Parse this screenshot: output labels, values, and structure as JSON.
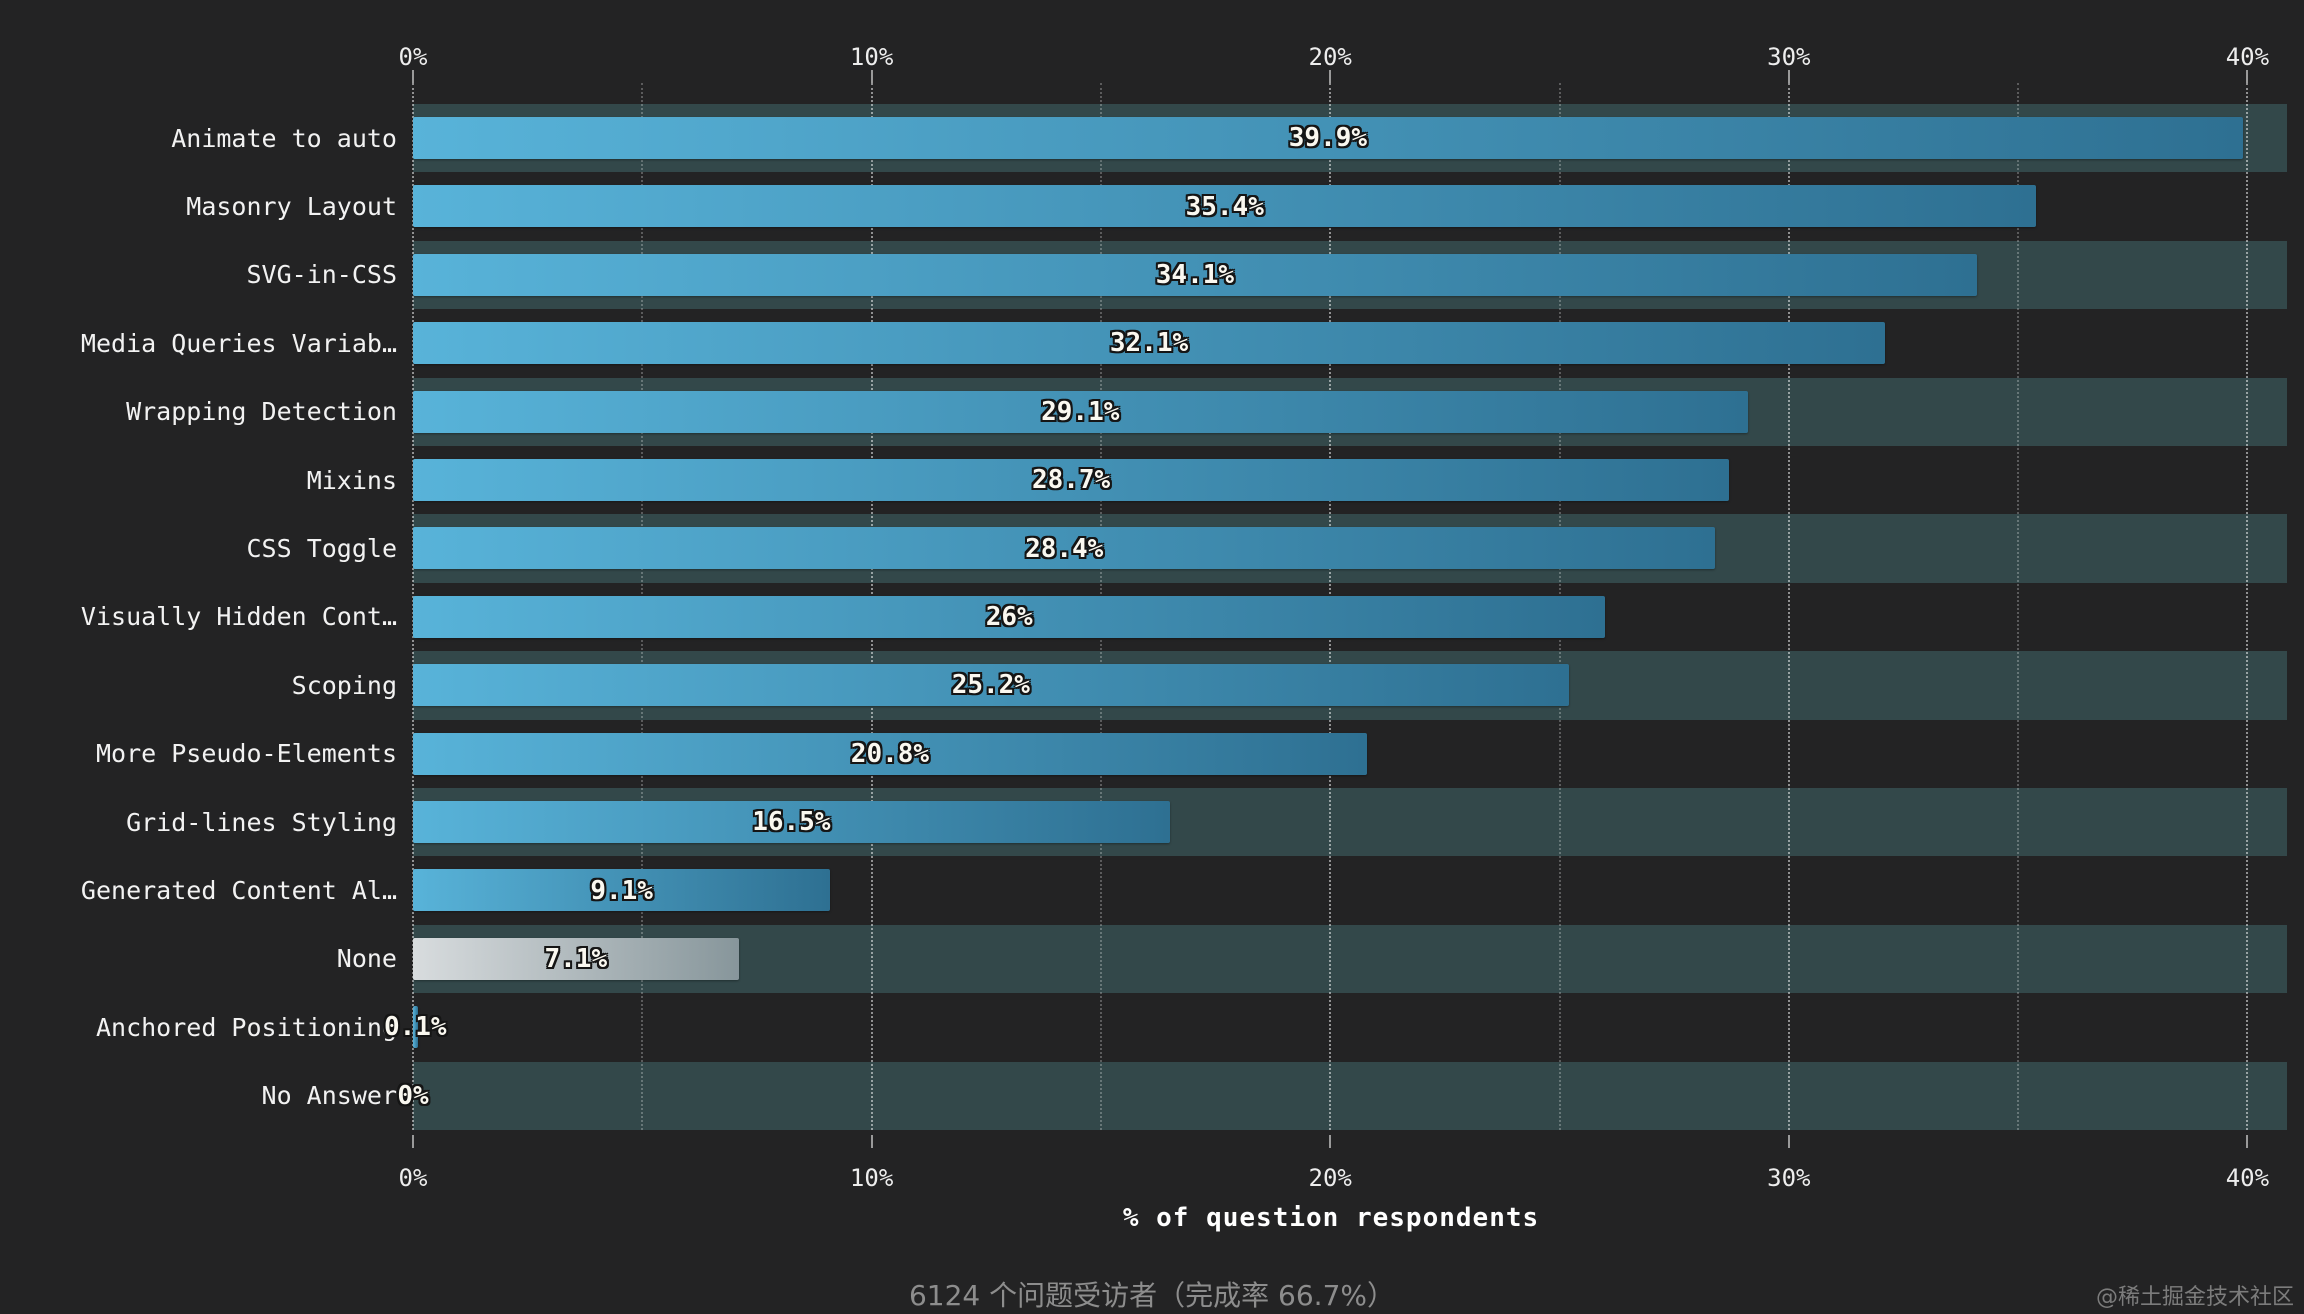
{
  "chart_data": {
    "type": "bar",
    "orientation": "horizontal",
    "title": "",
    "xlabel": "% of question respondents",
    "categories": [
      "Animate to auto",
      "Masonry Layout",
      "SVG-in-CSS",
      "Media Queries Variab…",
      "Wrapping Detection",
      "Mixins",
      "CSS Toggle",
      "Visually Hidden Cont…",
      "Scoping",
      "More Pseudo-Elements",
      "Grid-lines Styling",
      "Generated Content Al…",
      "None",
      "Anchored Positioning",
      "No Answer"
    ],
    "values": [
      39.9,
      35.4,
      34.1,
      32.1,
      29.1,
      28.7,
      28.4,
      26,
      25.2,
      20.8,
      16.5,
      9.1,
      7.1,
      0.1,
      0
    ],
    "value_labels": [
      "39.9%",
      "35.4%",
      "34.1%",
      "32.1%",
      "29.1%",
      "28.7%",
      "28.4%",
      "26%",
      "25.2%",
      "20.8%",
      "16.5%",
      "9.1%",
      "7.1%",
      "0.1%",
      "0%"
    ],
    "gray_bar_category": "None",
    "xlim": [
      0,
      40.85
    ],
    "major_ticks": [
      0,
      10,
      20,
      30,
      40
    ],
    "major_tick_labels": [
      "0%",
      "10%",
      "20%",
      "30%",
      "40%"
    ],
    "minor_ticks": [
      5,
      15,
      25,
      35
    ],
    "grid": "dotted vertical, top and bottom axes mirrored",
    "legend": "none",
    "zebra_striping": "odd rows have teal band background"
  },
  "footer": {
    "respondents_note": "6124 个问题受访者（完成率 66.7%）",
    "watermark": "@稀土掘金技术社区"
  },
  "colors": {
    "background": "#232324",
    "row_band": "#33484a",
    "bar_gradient_start": "#58b3d9",
    "bar_gradient_end": "#2e7092",
    "none_bar_gradient_start": "#d8dcde",
    "none_bar_gradient_end": "#87969b",
    "grid_major": "rgba(255,255,255,.50)",
    "grid_minor": "rgba(255,255,255,.26)",
    "tick": "#9a9a9a",
    "category_label": "#f2f2f2",
    "value_label": "#faf8f0",
    "footer_text": "#8d8d8d",
    "watermark_text": "#7c7c7c"
  }
}
